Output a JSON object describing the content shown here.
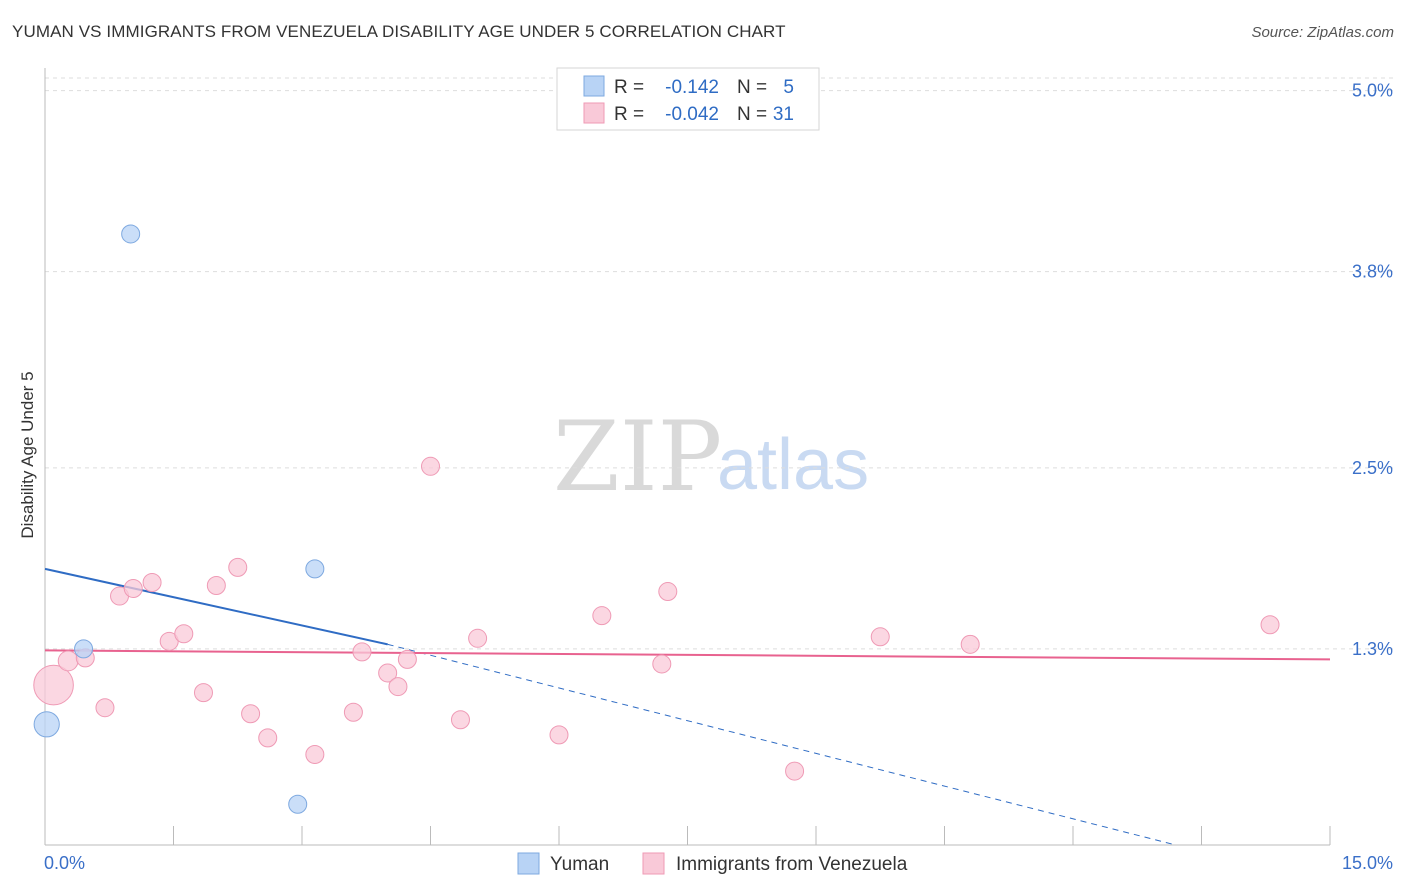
{
  "title": "YUMAN VS IMMIGRANTS FROM VENEZUELA DISABILITY AGE UNDER 5 CORRELATION CHART",
  "source": "Source: ZipAtlas.com",
  "watermark": {
    "zip": "ZIP",
    "atlas": "atlas"
  },
  "colors": {
    "yuman_fill": "#b8d3f5",
    "yuman_stroke": "#7ea9e0",
    "yuman_line": "#2f6cc4",
    "venezuela_fill": "#f9c9d8",
    "venezuela_stroke": "#ef9ab5",
    "venezuela_line": "#e8628f",
    "tick_text": "#3a6fc8",
    "grid": "#dddddd"
  },
  "legend": {
    "rows": [
      {
        "r_label": "R =",
        "r_value": "-0.142",
        "n_label": "N =",
        "n_value": "5"
      },
      {
        "r_label": "R =",
        "r_value": "-0.042",
        "n_label": "N =",
        "n_value": "31"
      }
    ]
  },
  "bottom_legend": {
    "yuman": "Yuman",
    "venezuela": "Immigrants from Venezuela"
  },
  "chart_data": {
    "type": "scatter",
    "title": "YUMAN VS IMMIGRANTS FROM VENEZUELA DISABILITY AGE UNDER 5 CORRELATION CHART",
    "xlabel": "",
    "ylabel": "Disability Age Under 5",
    "xlim": [
      0,
      15
    ],
    "ylim": [
      0,
      5.15
    ],
    "x_tick_labels": [
      "0.0%",
      "15.0%"
    ],
    "y_ticks": [
      1.3,
      2.5,
      3.8,
      5.0
    ],
    "y_tick_labels": [
      "1.3%",
      "2.5%",
      "3.8%",
      "5.0%"
    ],
    "grid": true,
    "legend_position": "top-center",
    "series": [
      {
        "name": "Yuman",
        "r": -0.142,
        "n": 5,
        "points": [
          {
            "x": 1.0,
            "y": 4.05,
            "s": 1
          },
          {
            "x": 0.45,
            "y": 1.3,
            "s": 1
          },
          {
            "x": 3.15,
            "y": 1.83,
            "s": 1
          },
          {
            "x": 0.02,
            "y": 0.8,
            "s": 1.4
          },
          {
            "x": 2.95,
            "y": 0.27,
            "s": 1
          }
        ],
        "trend": {
          "x0": 0.0,
          "y0": 1.83,
          "x1": 4.0,
          "y1": 1.33,
          "dash_to_x": 13.2,
          "dash_to_y": 0.0
        }
      },
      {
        "name": "Immigrants from Venezuela",
        "r": -0.042,
        "n": 31,
        "points": [
          {
            "x": 0.1,
            "y": 1.06,
            "s": 2.2
          },
          {
            "x": 0.27,
            "y": 1.22,
            "s": 1.1
          },
          {
            "x": 0.47,
            "y": 1.24,
            "s": 1
          },
          {
            "x": 0.7,
            "y": 0.91,
            "s": 1
          },
          {
            "x": 0.87,
            "y": 1.65,
            "s": 1
          },
          {
            "x": 1.03,
            "y": 1.7,
            "s": 1
          },
          {
            "x": 1.25,
            "y": 1.74,
            "s": 1
          },
          {
            "x": 1.45,
            "y": 1.35,
            "s": 1
          },
          {
            "x": 1.62,
            "y": 1.4,
            "s": 1
          },
          {
            "x": 1.85,
            "y": 1.01,
            "s": 1
          },
          {
            "x": 2.0,
            "y": 1.72,
            "s": 1
          },
          {
            "x": 2.25,
            "y": 1.84,
            "s": 1
          },
          {
            "x": 2.4,
            "y": 0.87,
            "s": 1
          },
          {
            "x": 2.6,
            "y": 0.71,
            "s": 1
          },
          {
            "x": 3.15,
            "y": 0.6,
            "s": 1
          },
          {
            "x": 3.6,
            "y": 0.88,
            "s": 1
          },
          {
            "x": 3.7,
            "y": 1.28,
            "s": 1
          },
          {
            "x": 4.0,
            "y": 1.14,
            "s": 1
          },
          {
            "x": 4.12,
            "y": 1.05,
            "s": 1
          },
          {
            "x": 4.23,
            "y": 1.23,
            "s": 1
          },
          {
            "x": 4.5,
            "y": 2.51,
            "s": 1
          },
          {
            "x": 4.85,
            "y": 0.83,
            "s": 1
          },
          {
            "x": 5.05,
            "y": 1.37,
            "s": 1
          },
          {
            "x": 6.0,
            "y": 0.73,
            "s": 1
          },
          {
            "x": 6.5,
            "y": 1.52,
            "s": 1
          },
          {
            "x": 7.2,
            "y": 1.2,
            "s": 1
          },
          {
            "x": 7.27,
            "y": 1.68,
            "s": 1
          },
          {
            "x": 8.75,
            "y": 0.49,
            "s": 1
          },
          {
            "x": 9.75,
            "y": 1.38,
            "s": 1
          },
          {
            "x": 10.8,
            "y": 1.33,
            "s": 1
          },
          {
            "x": 14.3,
            "y": 1.46,
            "s": 1
          }
        ],
        "trend": {
          "x0": 0.0,
          "y0": 1.29,
          "x1": 15.0,
          "y1": 1.23
        }
      }
    ]
  }
}
